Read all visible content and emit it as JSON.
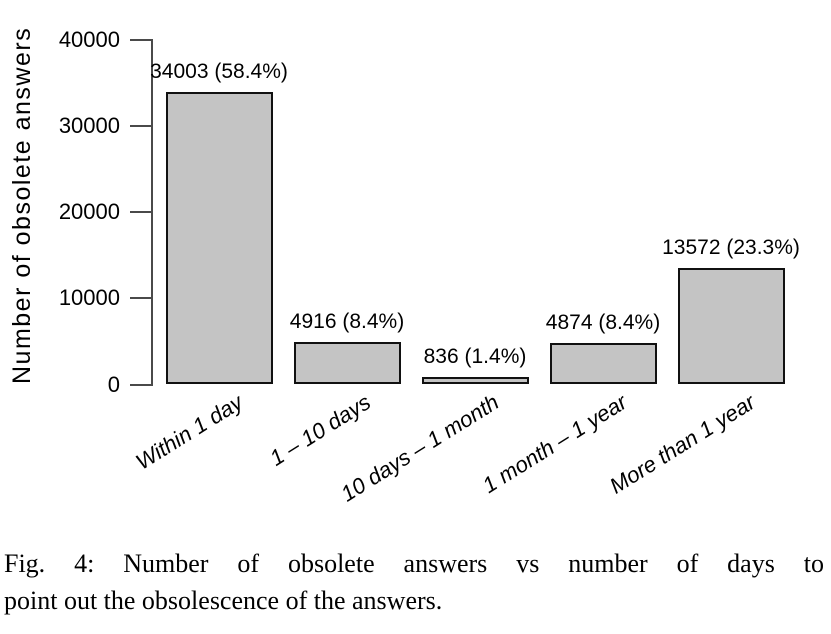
{
  "figure": {
    "caption_line1": "Fig. 4: Number of obsolete answers vs number of days to",
    "caption_line2": "point out the obsolescence of the answers."
  },
  "chart_data": {
    "type": "bar",
    "categories": [
      "Within 1 day",
      "1 – 10 days",
      "10 days – 1 month",
      "1 month – 1 year",
      "More than 1 year"
    ],
    "values": [
      34003,
      4916,
      836,
      4874,
      13572
    ],
    "percentages": [
      58.4,
      8.4,
      1.4,
      8.4,
      23.3
    ],
    "bar_labels": [
      "34003 (58.4%)",
      "4916 (8.4%)",
      "836 (1.4%)",
      "4874 (8.4%)",
      "13572 (23.3%)"
    ],
    "title": "",
    "xlabel": "",
    "ylabel": "Number of obsolete answers",
    "ylim": [
      0,
      40000
    ],
    "yticks": [
      0,
      10000,
      20000,
      30000,
      40000
    ],
    "ytick_labels": [
      "0",
      "10000",
      "20000",
      "30000",
      "40000"
    ],
    "grid": false,
    "legend": false,
    "bar_color": "#c4c4c4",
    "bar_border_color": "#111111",
    "axis_color": "#4a4a4a"
  }
}
